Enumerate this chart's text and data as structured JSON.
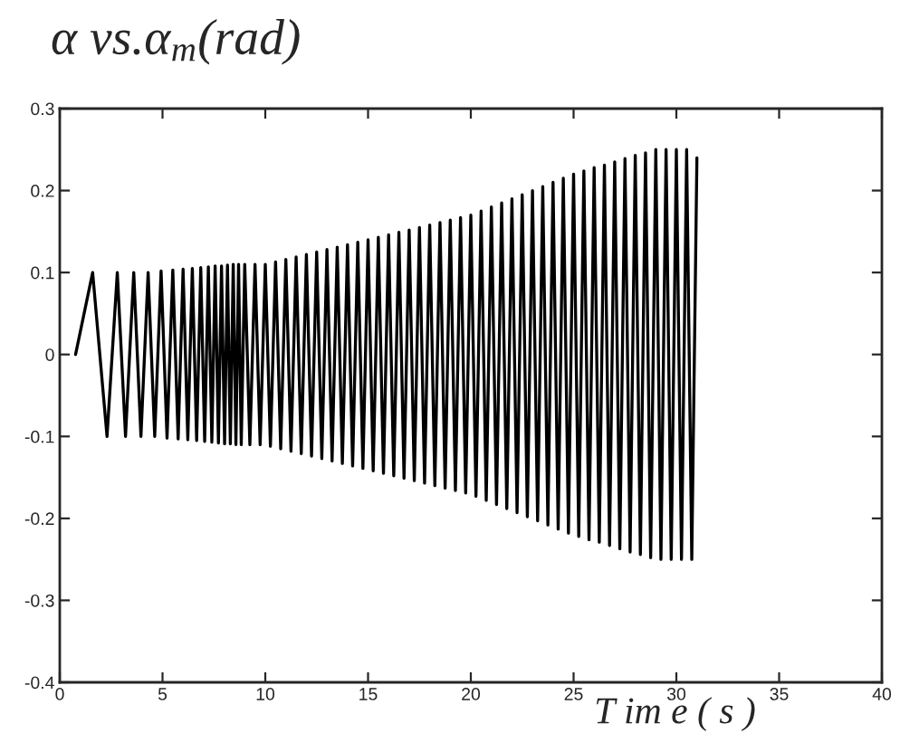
{
  "chart_data": {
    "type": "line",
    "title": "α vs.α$_{m}$(rad)",
    "xlabel": "T im e ( s )",
    "xlim": [
      0,
      40
    ],
    "xticks": [
      0,
      5,
      10,
      15,
      20,
      25,
      30,
      35,
      40
    ],
    "ylim": [
      -0.4,
      0.3
    ],
    "yticks": [
      -0.4,
      -0.3,
      -0.2,
      -0.1,
      0,
      0.1,
      0.2,
      0.3
    ],
    "grid": false,
    "legend": false,
    "marker": "none",
    "line_style": "solid",
    "series": [
      {
        "color": "#000000",
        "x": [
          0.77,
          1.6,
          2.3,
          2.8,
          3.2,
          3.6,
          3.95,
          4.3,
          4.62,
          4.93,
          5.22,
          5.5,
          5.76,
          6.0,
          6.23,
          6.45,
          6.66,
          6.86,
          7.05,
          7.23,
          7.4,
          7.56,
          7.72,
          7.87,
          8.02,
          8.16,
          8.3,
          8.44,
          8.57,
          8.7,
          8.83,
          9.0,
          9.25,
          9.5,
          9.75,
          10.0,
          10.25,
          10.5,
          10.75,
          11.0,
          11.25,
          11.5,
          11.75,
          12.0,
          12.25,
          12.5,
          12.75,
          13.0,
          13.25,
          13.5,
          13.75,
          14.0,
          14.25,
          14.5,
          14.75,
          15.0,
          15.25,
          15.5,
          15.75,
          16.0,
          16.25,
          16.5,
          16.75,
          17.0,
          17.25,
          17.5,
          17.75,
          18.0,
          18.25,
          18.5,
          18.75,
          19.0,
          19.25,
          19.5,
          19.75,
          20.0,
          20.25,
          20.5,
          20.75,
          21.0,
          21.25,
          21.5,
          21.75,
          22.0,
          22.25,
          22.5,
          22.75,
          23.0,
          23.25,
          23.5,
          23.75,
          24.0,
          24.25,
          24.5,
          24.75,
          25.0,
          25.25,
          25.5,
          25.75,
          26.0,
          26.25,
          26.5,
          26.75,
          27.0,
          27.25,
          27.5,
          27.75,
          28.0,
          28.25,
          28.5,
          28.75,
          29.0,
          29.25,
          29.5,
          29.75,
          30.0,
          30.25,
          30.5,
          30.75,
          31.0
        ],
        "values": [
          0,
          0.1,
          -0.1,
          0.1,
          -0.1,
          0.1,
          -0.1,
          0.1,
          -0.1,
          0.102,
          -0.102,
          0.103,
          -0.103,
          0.104,
          -0.104,
          0.105,
          -0.105,
          0.106,
          -0.106,
          0.107,
          -0.107,
          0.108,
          -0.108,
          0.108,
          -0.109,
          0.109,
          -0.109,
          0.11,
          -0.11,
          0.11,
          -0.11,
          0.11,
          -0.11,
          0.11,
          -0.11,
          0.11,
          -0.112,
          0.113,
          -0.115,
          0.116,
          -0.118,
          0.119,
          -0.121,
          0.122,
          -0.124,
          0.125,
          -0.127,
          0.128,
          -0.13,
          0.131,
          -0.133,
          0.134,
          -0.136,
          0.137,
          -0.139,
          0.14,
          -0.142,
          0.143,
          -0.145,
          0.146,
          -0.148,
          0.149,
          -0.151,
          0.152,
          -0.154,
          0.155,
          -0.157,
          0.158,
          -0.16,
          0.161,
          -0.163,
          0.164,
          -0.166,
          0.167,
          -0.169,
          0.17,
          -0.173,
          0.175,
          -0.178,
          0.18,
          -0.183,
          0.185,
          -0.188,
          0.19,
          -0.193,
          0.195,
          -0.198,
          0.2,
          -0.203,
          0.205,
          -0.208,
          0.21,
          -0.213,
          0.215,
          -0.218,
          0.22,
          -0.222,
          0.224,
          -0.226,
          0.228,
          -0.229,
          0.231,
          -0.233,
          0.235,
          -0.237,
          0.239,
          -0.241,
          0.243,
          -0.244,
          0.246,
          -0.248,
          0.25,
          -0.25,
          0.25,
          -0.25,
          0.25,
          -0.25,
          0.25,
          -0.25,
          0.24
        ]
      }
    ]
  }
}
